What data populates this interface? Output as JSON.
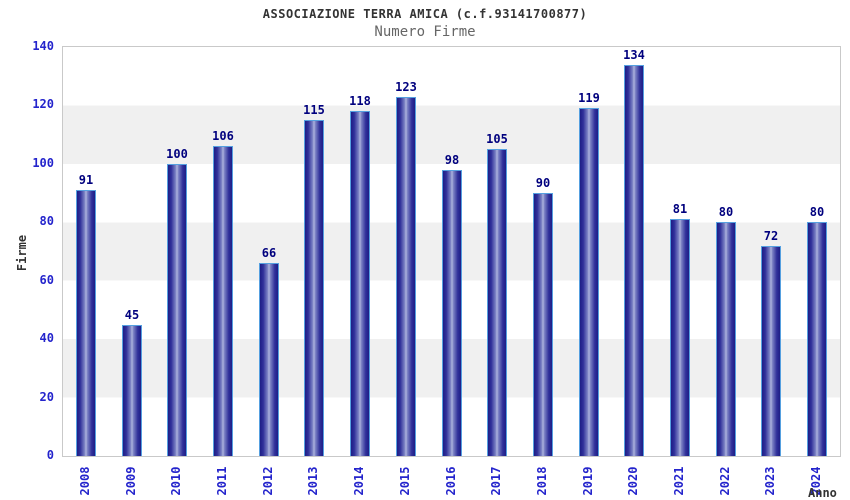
{
  "chart_data": {
    "type": "bar",
    "title": "ASSOCIAZIONE TERRA AMICA (c.f.93141700877)",
    "subtitle": "Numero Firme",
    "xlabel": "Anno",
    "ylabel": "Firme",
    "categories": [
      "2008",
      "2009",
      "2010",
      "2011",
      "2012",
      "2013",
      "2014",
      "2015",
      "2016",
      "2017",
      "2018",
      "2019",
      "2020",
      "2021",
      "2022",
      "2023",
      "2024"
    ],
    "values": [
      91,
      45,
      100,
      106,
      66,
      115,
      118,
      123,
      98,
      105,
      90,
      119,
      134,
      81,
      80,
      72,
      80
    ],
    "ylim": [
      0,
      140
    ],
    "yticks": [
      0,
      20,
      40,
      60,
      80,
      100,
      120,
      140
    ],
    "grid": "horizontal-bands-alternating",
    "legend_position": "none",
    "colors": {
      "bar_edge": "#1e1e86",
      "bar_center": "#aeb4de",
      "bar_border": "#55a0e0",
      "value_label": "#00007e",
      "tick_label": "#2424cc",
      "title": "#333333",
      "subtitle": "#666666",
      "band_gray": "#f0f0f0",
      "plot_border": "#c9c9c9",
      "background": "#ffffff"
    }
  }
}
